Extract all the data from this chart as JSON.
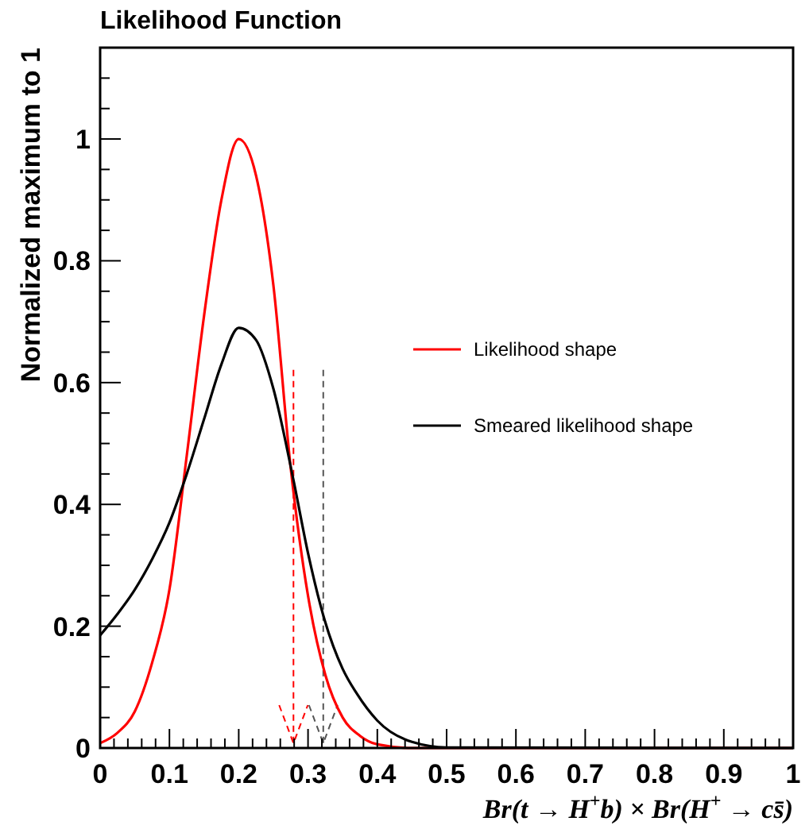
{
  "chart_data": {
    "type": "line",
    "title": "Likelihood Function",
    "xlabel": "Br(t → H$^{+}$b) × Br(H$^{+}$ → cs̄)",
    "ylabel": "Normalized maximum to 1",
    "series": [
      {
        "name": "Likelihood shape",
        "color": "#ff0000",
        "x": [
          0,
          0.025,
          0.05,
          0.075,
          0.1,
          0.125,
          0.15,
          0.175,
          0.2,
          0.225,
          0.25,
          0.275,
          0.3,
          0.325,
          0.35,
          0.375,
          0.4,
          0.45,
          0.5,
          1
        ],
        "values": [
          0.008,
          0.025,
          0.06,
          0.14,
          0.26,
          0.48,
          0.71,
          0.9,
          1.0,
          0.94,
          0.76,
          0.46,
          0.25,
          0.12,
          0.05,
          0.02,
          0.006,
          0,
          0,
          0
        ]
      },
      {
        "name": "Smeared likelihood shape",
        "color": "#000000",
        "x": [
          0,
          0.025,
          0.05,
          0.075,
          0.1,
          0.125,
          0.15,
          0.175,
          0.2,
          0.225,
          0.25,
          0.279,
          0.3,
          0.324,
          0.35,
          0.37,
          0.4,
          0.45,
          0.5,
          1
        ],
        "values": [
          0.185,
          0.22,
          0.26,
          0.31,
          0.37,
          0.45,
          0.54,
          0.63,
          0.69,
          0.67,
          0.59,
          0.44,
          0.32,
          0.21,
          0.13,
          0.09,
          0.045,
          0.01,
          0.001,
          0
        ]
      }
    ],
    "ref_lines": [
      {
        "axis": "x",
        "value": 0.279,
        "color": "#ff0000",
        "line_style": "dashed"
      },
      {
        "axis": "x",
        "value": 0.322,
        "color": "#555555",
        "line_style": "dashed"
      }
    ],
    "xlim": [
      0,
      1
    ],
    "ylim": [
      0,
      1.15
    ],
    "xticks": [
      0,
      {
        "value": 0.02,
        "label": null
      },
      {
        "value": 0.04,
        "label": null
      },
      {
        "value": 0.06,
        "label": null
      },
      {
        "value": 0.08,
        "label": null
      },
      0.1,
      {
        "value": 0.12,
        "label": null
      },
      {
        "value": 0.14,
        "label": null
      },
      {
        "value": 0.16,
        "label": null
      },
      {
        "value": 0.18,
        "label": null
      },
      0.2,
      {
        "value": 0.22,
        "label": null
      },
      {
        "value": 0.24,
        "label": null
      },
      {
        "value": 0.26,
        "label": null
      },
      {
        "value": 0.28,
        "label": null
      },
      0.3,
      {
        "value": 0.32,
        "label": null
      },
      {
        "value": 0.34,
        "label": null
      },
      {
        "value": 0.36,
        "label": null
      },
      {
        "value": 0.38,
        "label": null
      },
      0.4,
      {
        "value": 0.42,
        "label": null
      },
      {
        "value": 0.44,
        "label": null
      },
      {
        "value": 0.46,
        "label": null
      },
      {
        "value": 0.48,
        "label": null
      },
      0.5,
      {
        "value": 0.52,
        "label": null
      },
      {
        "value": 0.54,
        "label": null
      },
      {
        "value": 0.56,
        "label": null
      },
      {
        "value": 0.58,
        "label": null
      },
      0.6,
      {
        "value": 0.62,
        "label": null
      },
      {
        "value": 0.64,
        "label": null
      },
      {
        "value": 0.66,
        "label": null
      },
      {
        "value": 0.68,
        "label": null
      },
      0.7,
      {
        "value": 0.72,
        "label": null
      },
      {
        "value": 0.74,
        "label": null
      },
      {
        "value": 0.76,
        "label": null
      },
      {
        "value": 0.78,
        "label": null
      },
      0.8,
      {
        "value": 0.82,
        "label": null
      },
      {
        "value": 0.84,
        "label": null
      },
      {
        "value": 0.86,
        "label": null
      },
      {
        "value": 0.88,
        "label": null
      },
      0.9,
      {
        "value": 0.92,
        "label": null
      },
      {
        "value": 0.94,
        "label": null
      },
      {
        "value": 0.96,
        "label": null
      },
      {
        "value": 0.98,
        "label": null
      },
      1
    ],
    "yticks": [
      0,
      {
        "value": 0.05,
        "label": null
      },
      {
        "value": 0.1,
        "label": null
      },
      {
        "value": 0.15,
        "label": null
      },
      0.2,
      {
        "value": 0.25,
        "label": null
      },
      {
        "value": 0.3,
        "label": null
      },
      {
        "value": 0.35,
        "label": null
      },
      0.4,
      {
        "value": 0.45,
        "label": null
      },
      {
        "value": 0.5,
        "label": null
      },
      {
        "value": 0.55,
        "label": null
      },
      0.6,
      {
        "value": 0.65,
        "label": null
      },
      {
        "value": 0.7,
        "label": null
      },
      {
        "value": 0.75,
        "label": null
      },
      0.8,
      {
        "value": 0.85,
        "label": null
      },
      {
        "value": 0.9,
        "label": null
      },
      {
        "value": 0.95,
        "label": null
      },
      1,
      {
        "value": 1.05,
        "label": null
      },
      {
        "value": 1.1,
        "label": null
      }
    ],
    "legend": "right",
    "grid": false,
    "marker": "none",
    "line_style": "solid"
  }
}
